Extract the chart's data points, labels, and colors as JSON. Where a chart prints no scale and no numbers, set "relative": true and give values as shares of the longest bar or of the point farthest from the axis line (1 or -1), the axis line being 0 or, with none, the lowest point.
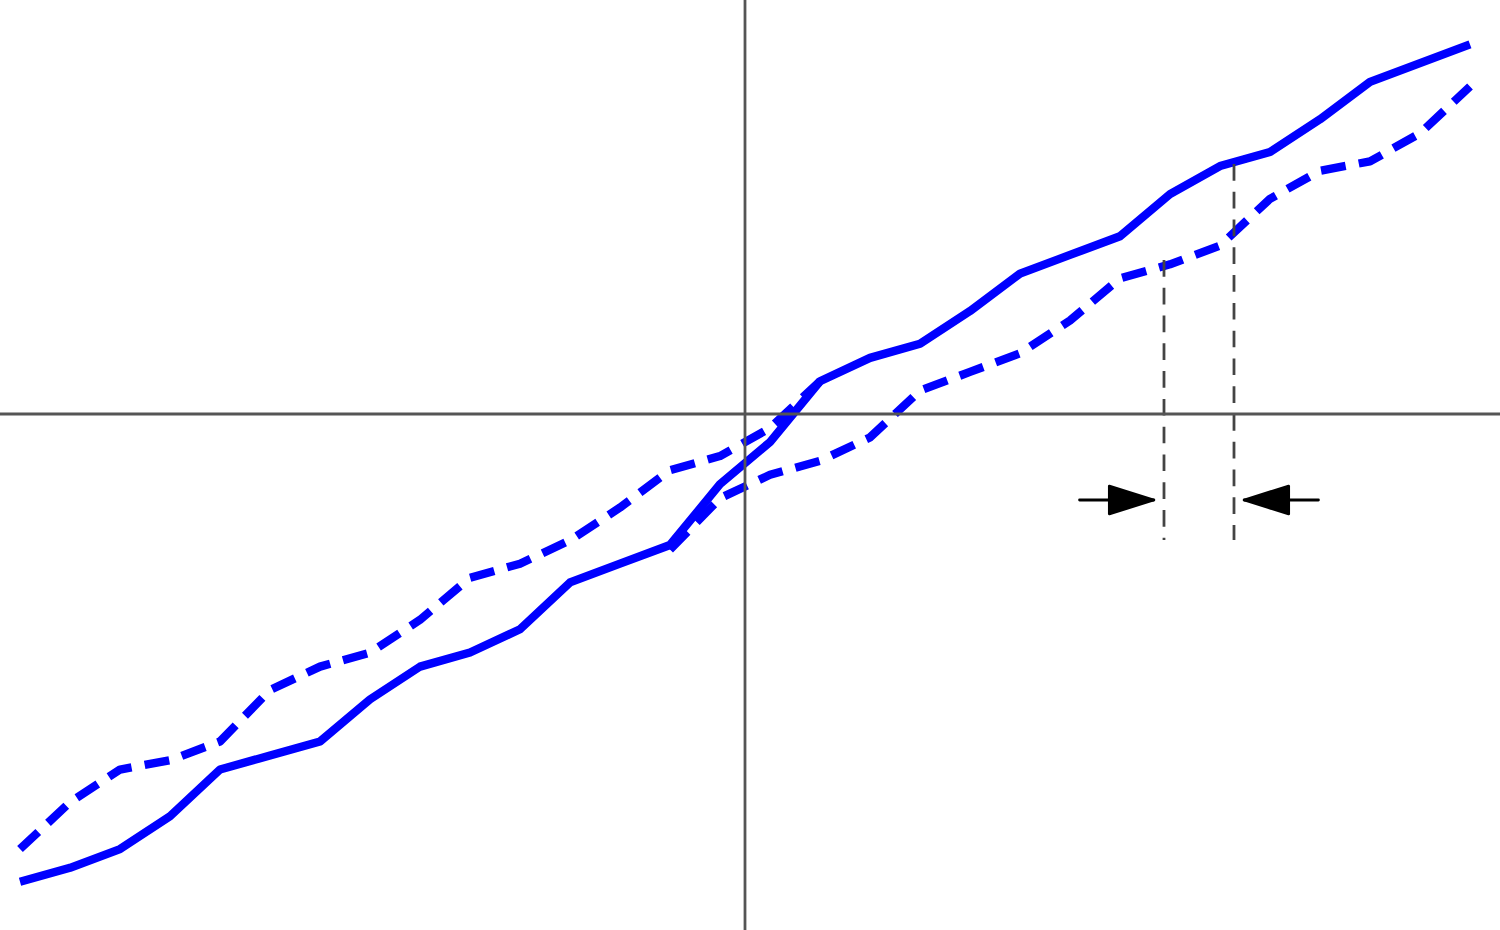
{
  "chart_data": {
    "type": "line",
    "relative": true,
    "categories": [
      null,
      null,
      null,
      null,
      null,
      null,
      null,
      null,
      null,
      null,
      null,
      null,
      null,
      null,
      null,
      null,
      null,
      null,
      null,
      null,
      null,
      null,
      null,
      null,
      null,
      null,
      null,
      null,
      null,
      null
    ],
    "series": [
      {
        "color": "#0000ff",
        "line_style": "solid",
        "values": [
          -1.0,
          -0.97,
          -0.93,
          -0.86,
          -0.76,
          -0.73,
          -0.7,
          -0.61,
          -0.54,
          -0.51,
          -0.46,
          -0.36,
          -0.32,
          -0.28,
          -0.15,
          -0.06,
          0.07,
          0.12,
          0.15,
          0.22,
          0.3,
          0.34,
          0.38,
          0.47,
          0.53,
          0.56,
          0.63,
          0.71,
          0.75,
          0.79
        ]
      },
      {
        "color": "#0000ff",
        "line_style": "dashed",
        "values": [
          -0.93,
          -0.83,
          -0.76,
          -0.74,
          -0.7,
          -0.59,
          -0.54,
          -0.51,
          -0.44,
          -0.35,
          -0.32,
          -0.27,
          -0.2,
          -0.12,
          -0.09,
          -0.03,
          0.07,
          null,
          null,
          null,
          null,
          null,
          null,
          null,
          null,
          null,
          null,
          null,
          null,
          null
        ]
      },
      {
        "color": "#0000ff",
        "line_style": "dashed",
        "values": [
          null,
          null,
          null,
          null,
          null,
          null,
          null,
          null,
          null,
          null,
          null,
          null,
          null,
          -0.29,
          -0.18,
          -0.13,
          -0.1,
          -0.05,
          0.05,
          0.09,
          0.13,
          0.2,
          0.29,
          0.32,
          0.36,
          0.46,
          0.52,
          0.54,
          0.6,
          0.7
        ]
      }
    ],
    "marker": "none"
  }
}
